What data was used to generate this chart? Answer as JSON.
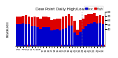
{
  "title": "Dew Point Daily High/Low",
  "ylabel_left": "MILWAUKEE",
  "background_color": "#ffffff",
  "bar_width": 0.45,
  "high_color": "#dd0000",
  "low_color": "#0000cc",
  "dashed_vline_index": 23,
  "ylim": [
    0,
    80
  ],
  "yticks": [
    40,
    50,
    60,
    70,
    80
  ],
  "categories": [
    "1",
    "2",
    "3",
    "4",
    "5",
    "6",
    "7",
    "8",
    "9",
    "10",
    "11",
    "12",
    "13",
    "14",
    "15",
    "16",
    "17",
    "18",
    "19",
    "20",
    "21",
    "22",
    "23",
    "24",
    "25",
    "26",
    "27",
    "28",
    "29",
    "30",
    "31"
  ],
  "high_values": [
    68,
    68,
    70,
    72,
    68,
    66,
    68,
    66,
    64,
    68,
    68,
    66,
    60,
    62,
    64,
    64,
    68,
    70,
    74,
    70,
    58,
    38,
    60,
    64,
    72,
    74,
    74,
    76,
    70,
    72,
    70
  ],
  "low_values": [
    50,
    50,
    52,
    50,
    50,
    46,
    46,
    44,
    40,
    44,
    44,
    44,
    36,
    38,
    40,
    36,
    40,
    42,
    48,
    48,
    32,
    26,
    34,
    40,
    46,
    50,
    52,
    56,
    52,
    54,
    50
  ]
}
